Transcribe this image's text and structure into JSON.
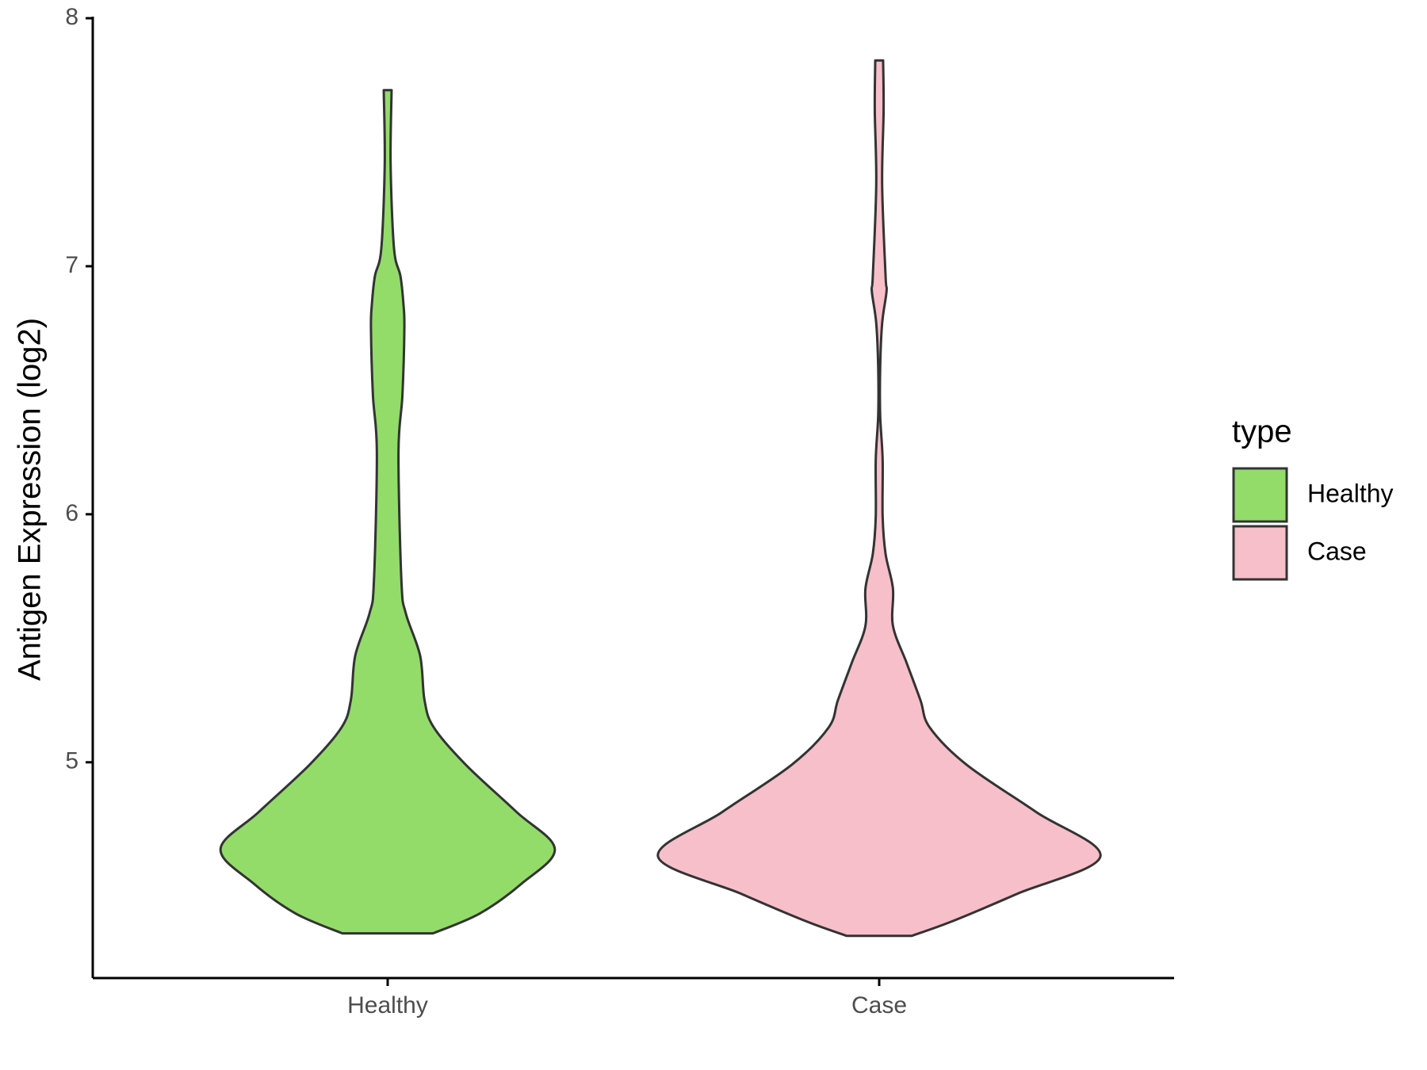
{
  "chart_data": {
    "type": "violin",
    "y_label": "Antigen Expression (log2)",
    "categories": [
      "Healthy",
      "Case"
    ],
    "legend_title": "type",
    "legend_position": "right",
    "series": [
      {
        "name": "Healthy",
        "color": "#93dc6a",
        "y": [
          7.71,
          7.41,
          7.07,
          6.96,
          6.85,
          6.75,
          6.48,
          6.25,
          5.73,
          5.6,
          5.43,
          5.25,
          5.14,
          4.99,
          4.8,
          4.65,
          4.51,
          4.39,
          4.31
        ],
        "half_width": [
          0.008,
          0.006,
          0.013,
          0.026,
          0.032,
          0.034,
          0.03,
          0.022,
          0.028,
          0.037,
          0.066,
          0.075,
          0.094,
          0.159,
          0.262,
          0.34,
          0.272,
          0.187,
          0.092
        ]
      },
      {
        "name": "Case",
        "color": "#f7bfca",
        "y": [
          7.83,
          7.63,
          7.33,
          6.96,
          6.9,
          6.77,
          6.59,
          6.4,
          6.22,
          5.99,
          5.84,
          5.7,
          5.55,
          5.4,
          5.25,
          5.14,
          4.99,
          4.8,
          4.62,
          4.47,
          4.36,
          4.3
        ],
        "half_width": [
          0.008,
          0.009,
          0.006,
          0.013,
          0.015,
          0.006,
          0.002,
          0.002,
          0.007,
          0.007,
          0.013,
          0.028,
          0.028,
          0.056,
          0.084,
          0.103,
          0.178,
          0.319,
          0.45,
          0.281,
          0.15,
          0.066
        ]
      }
    ],
    "ylim": [
      4.13,
      8
    ],
    "yticks": [
      5,
      6,
      7,
      8
    ],
    "grid": false
  }
}
